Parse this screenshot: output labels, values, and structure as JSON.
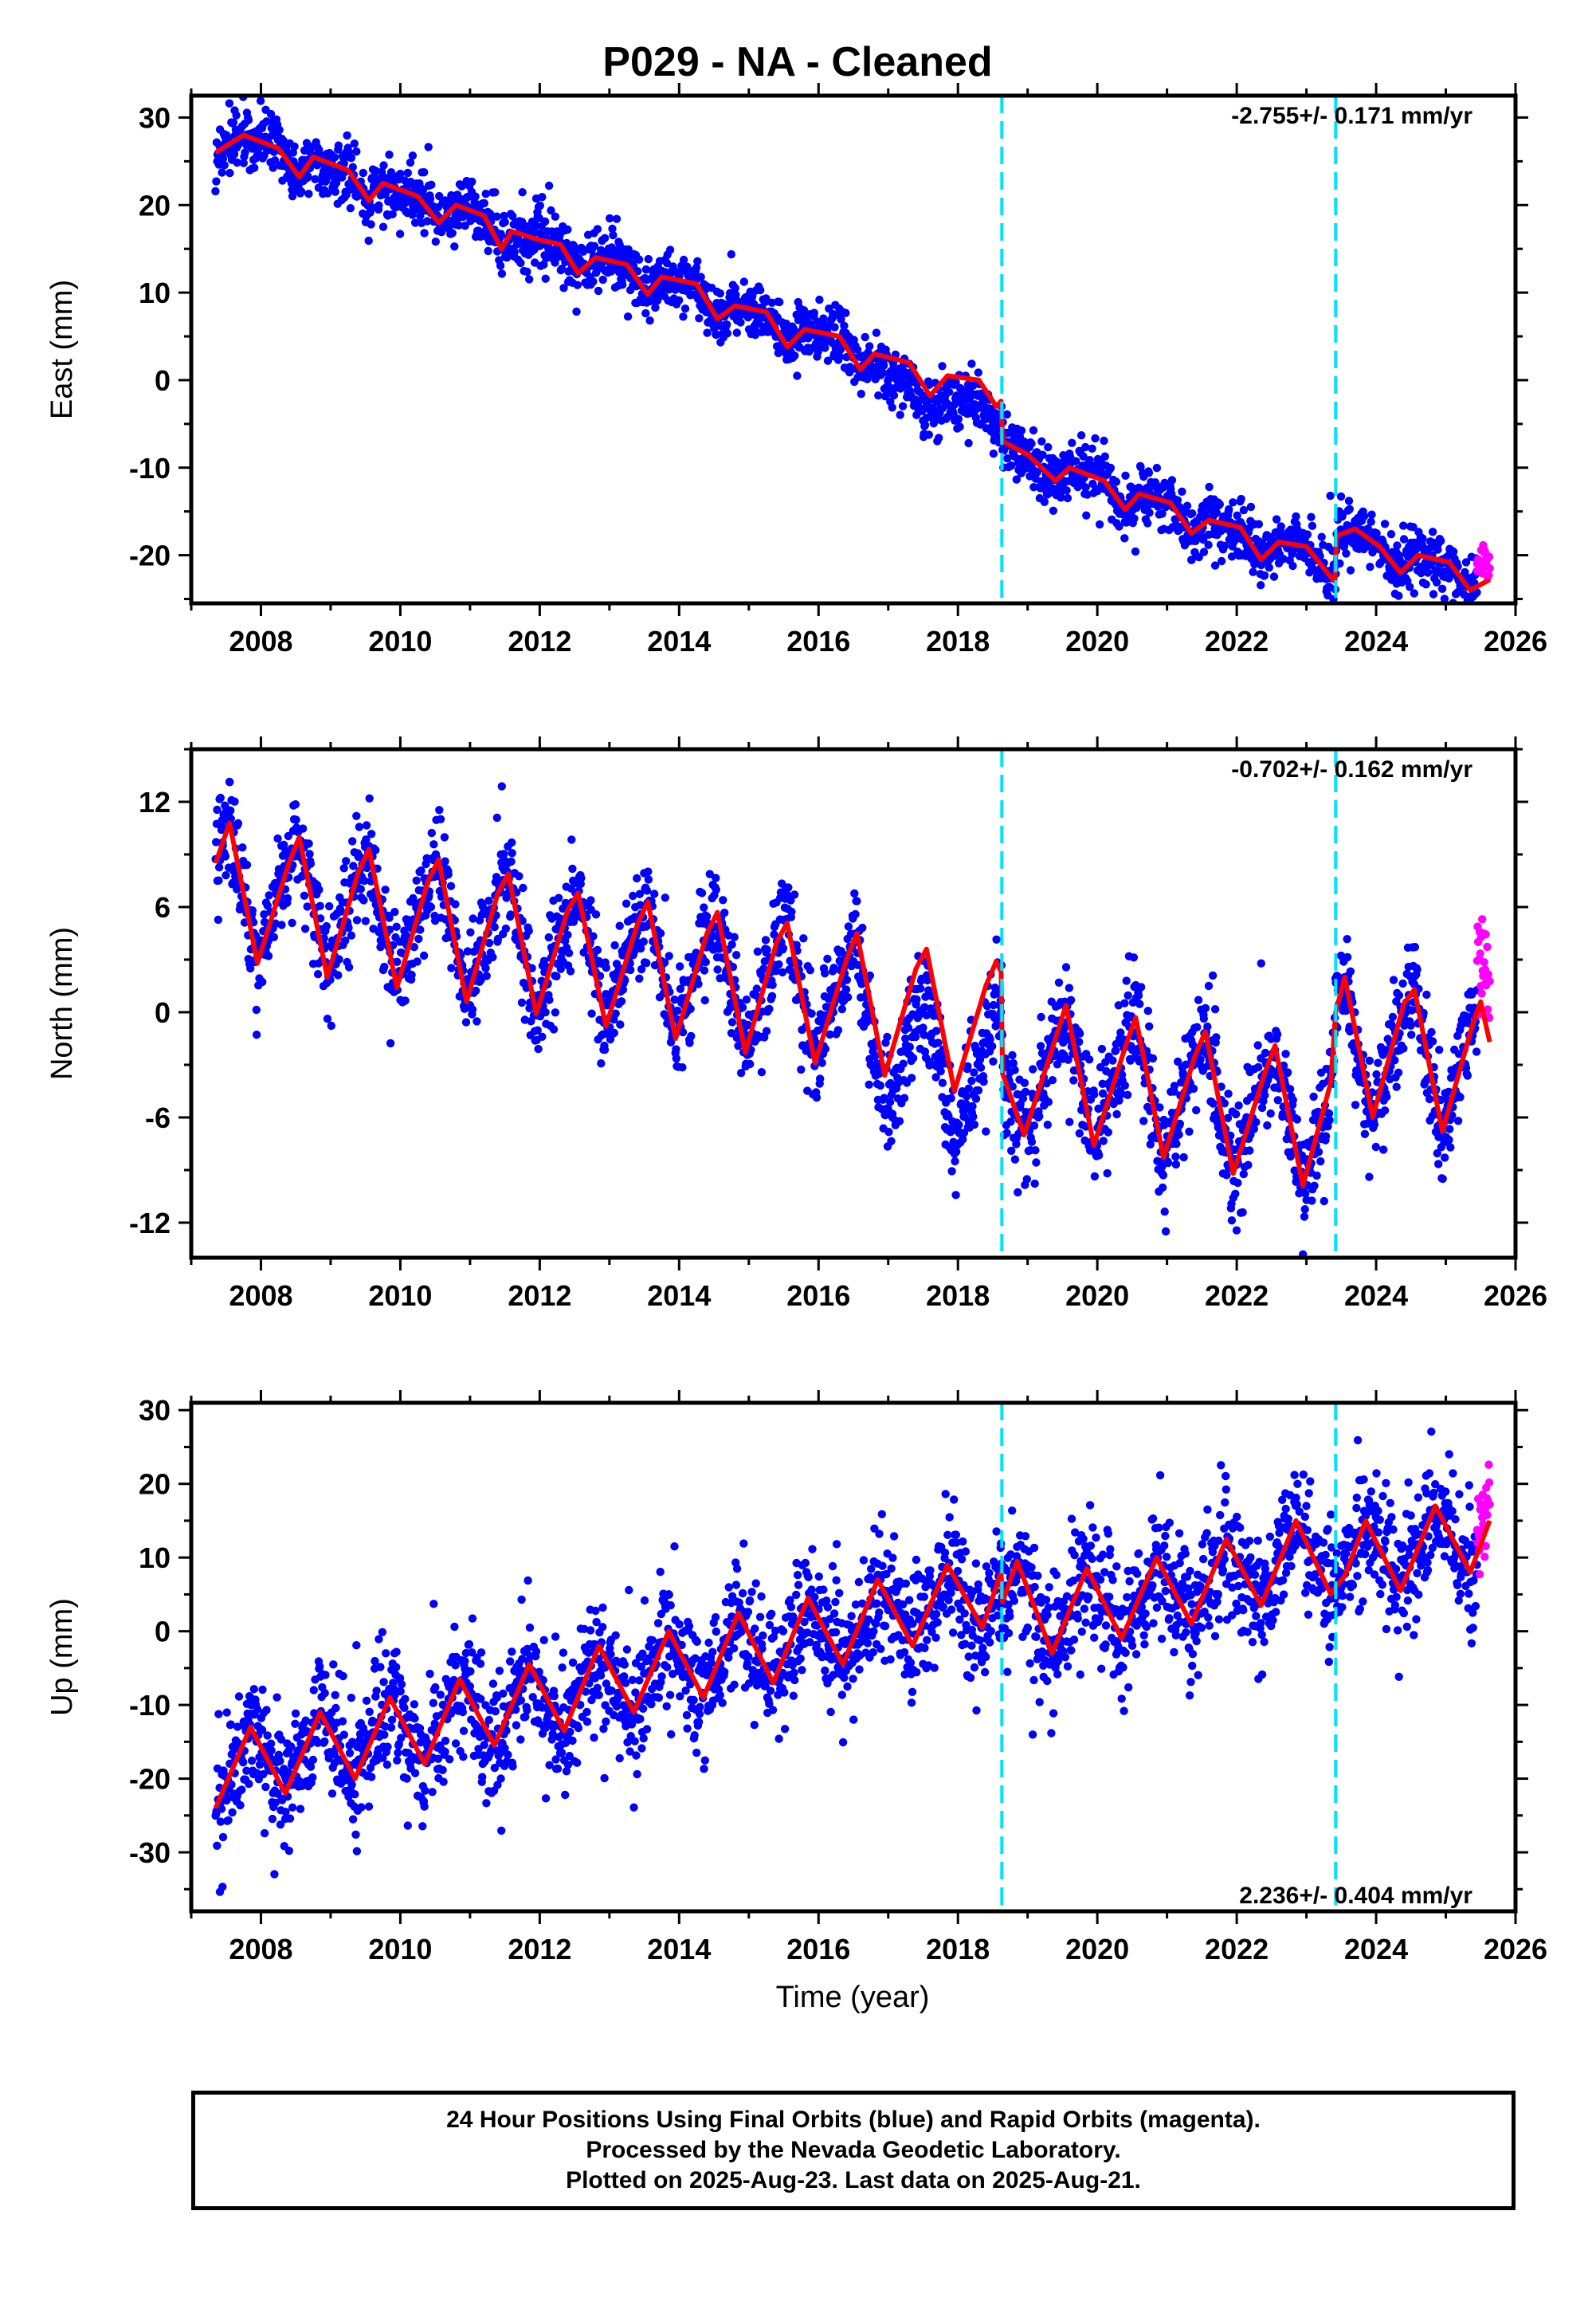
{
  "title": "P029  - NA - Cleaned",
  "xlabel": "Time (year)",
  "colors": {
    "final_orbits": "#0000ff",
    "rapid_orbits": "#ff00ff",
    "model": "#ff0000",
    "event_lines": "#00e0ff"
  },
  "footer": {
    "line1": "24 Hour Positions Using Final Orbits (blue) and Rapid Orbits (magenta).",
    "line2": "Processed by the Nevada Geodetic Laboratory.",
    "line3": "Plotted on 2025-Aug-23. Last data on 2025-Aug-21."
  },
  "chart_data": [
    {
      "type": "scatter",
      "panel": "East",
      "ylabel": "East (mm)",
      "rate_text": "-2.755+/- 0.171 mm/yr",
      "xlim": [
        2007.0,
        2026.0
      ],
      "ylim": [
        -25.5,
        32.5
      ],
      "x_ticks": [
        2008,
        2010,
        2012,
        2014,
        2016,
        2018,
        2020,
        2022,
        2024,
        2026
      ],
      "y_ticks": [
        -20,
        -10,
        0,
        10,
        20,
        30
      ],
      "event_lines_x": [
        2018.63,
        2023.42
      ],
      "data_range_x": [
        2007.35,
        2025.63
      ],
      "rapid_orbit_x_start": 2025.45,
      "model_line": {
        "x": [
          2007.35,
          2007.75,
          2008.25,
          2008.55,
          2008.75,
          2009.25,
          2009.55,
          2009.75,
          2010.25,
          2010.55,
          2010.8,
          2011.2,
          2011.45,
          2011.6,
          2012.0,
          2012.3,
          2012.55,
          2012.8,
          2013.25,
          2013.55,
          2013.75,
          2014.25,
          2014.55,
          2014.8,
          2015.25,
          2015.55,
          2015.8,
          2016.3,
          2016.6,
          2016.8,
          2017.3,
          2017.6,
          2017.85,
          2018.3,
          2018.55,
          2018.62,
          2018.64,
          2019.0,
          2019.4,
          2019.6,
          2020.1,
          2020.4,
          2020.6,
          2021.05,
          2021.35,
          2021.6,
          2022.05,
          2022.35,
          2022.6,
          2023.0,
          2023.35,
          2023.41,
          2023.43,
          2023.7,
          2024.05,
          2024.35,
          2024.6,
          2025.05,
          2025.35,
          2025.63
        ],
        "y": [
          26.0,
          28.0,
          26.5,
          23.2,
          25.5,
          24.0,
          20.5,
          22.5,
          21.0,
          18.0,
          20.0,
          18.8,
          15.0,
          17.0,
          16.0,
          15.5,
          12.2,
          14.0,
          13.2,
          9.8,
          11.8,
          11.0,
          7.0,
          8.5,
          7.8,
          3.8,
          5.8,
          5.0,
          1.2,
          3.0,
          2.0,
          -1.8,
          0.5,
          0.0,
          -3.0,
          -2.4,
          -7.0,
          -8.5,
          -11.5,
          -10.0,
          -11.5,
          -14.8,
          -13.0,
          -14.0,
          -17.5,
          -16.0,
          -16.8,
          -20.5,
          -18.5,
          -19.0,
          -22.5,
          -23.0,
          -17.8,
          -17.0,
          -19.0,
          -22.0,
          -20.0,
          -20.8,
          -24.0,
          -22.8
        ]
      }
    },
    {
      "type": "scatter",
      "panel": "North",
      "ylabel": "North (mm)",
      "rate_text": "-0.702+/- 0.162 mm/yr",
      "xlim": [
        2007.0,
        2026.0
      ],
      "ylim": [
        -14.0,
        15.0
      ],
      "x_ticks": [
        2008,
        2010,
        2012,
        2014,
        2016,
        2018,
        2020,
        2022,
        2024,
        2026
      ],
      "y_ticks": [
        -12,
        -6,
        0,
        6,
        12
      ],
      "event_lines_x": [
        2018.63,
        2023.42
      ],
      "data_range_x": [
        2007.35,
        2025.63
      ],
      "rapid_orbit_x_start": 2025.45,
      "model_line": {
        "x": [
          2007.35,
          2007.55,
          2007.95,
          2008.4,
          2008.55,
          2008.95,
          2009.4,
          2009.55,
          2009.95,
          2010.4,
          2010.55,
          2010.95,
          2011.4,
          2011.55,
          2011.95,
          2012.4,
          2012.55,
          2012.95,
          2013.4,
          2013.55,
          2013.95,
          2014.4,
          2014.55,
          2014.95,
          2015.4,
          2015.55,
          2015.95,
          2016.4,
          2016.55,
          2016.95,
          2017.4,
          2017.55,
          2017.95,
          2018.4,
          2018.55,
          2018.62,
          2018.64,
          2018.95,
          2019.4,
          2019.55,
          2019.95,
          2020.4,
          2020.55,
          2020.95,
          2021.4,
          2021.55,
          2021.95,
          2022.4,
          2022.55,
          2022.95,
          2023.35,
          2023.42,
          2023.55,
          2023.95,
          2024.4,
          2024.55,
          2024.95,
          2025.4,
          2025.5,
          2025.63
        ],
        "y": [
          8.5,
          10.8,
          2.8,
          8.5,
          10.0,
          2.0,
          8.0,
          9.3,
          1.4,
          7.5,
          8.7,
          0.6,
          6.8,
          7.9,
          -0.1,
          5.8,
          6.8,
          -0.8,
          5.0,
          6.3,
          -1.5,
          4.5,
          5.7,
          -2.3,
          4.0,
          5.1,
          -2.9,
          3.0,
          4.5,
          -3.6,
          2.5,
          3.6,
          -4.5,
          1.5,
          2.9,
          2.3,
          -3.5,
          -7.0,
          -1.5,
          0.4,
          -7.6,
          -2.0,
          -0.3,
          -8.3,
          -2.5,
          -1.1,
          -9.2,
          -3.5,
          -1.9,
          -9.9,
          -4.0,
          0.0,
          2.0,
          -6.0,
          0.5,
          1.3,
          -6.8,
          -0.5,
          0.6,
          -1.7
        ]
      }
    },
    {
      "type": "scatter",
      "panel": "Up",
      "ylabel": "Up (mm)",
      "rate_text": "2.236+/- 0.404 mm/yr",
      "xlim": [
        2007.0,
        2026.0
      ],
      "ylim": [
        -38.0,
        31.0
      ],
      "x_ticks": [
        2008,
        2010,
        2012,
        2014,
        2016,
        2018,
        2020,
        2022,
        2024,
        2026
      ],
      "y_ticks": [
        -30,
        -20,
        -10,
        0,
        10,
        20,
        30
      ],
      "event_lines_x": [
        2018.63,
        2023.42
      ],
      "data_range_x": [
        2007.35,
        2025.63
      ],
      "rapid_orbit_x_start": 2025.45,
      "model_line": {
        "x": [
          2007.35,
          2007.85,
          2008.35,
          2008.85,
          2009.35,
          2009.85,
          2010.35,
          2010.85,
          2011.35,
          2011.85,
          2012.35,
          2012.85,
          2013.35,
          2013.85,
          2014.35,
          2014.85,
          2015.35,
          2015.85,
          2016.35,
          2016.85,
          2017.35,
          2017.85,
          2018.35,
          2018.62,
          2018.64,
          2018.85,
          2019.35,
          2019.85,
          2020.35,
          2020.85,
          2021.35,
          2021.85,
          2022.35,
          2022.85,
          2023.35,
          2023.42,
          2023.55,
          2023.85,
          2024.35,
          2024.85,
          2025.35,
          2025.63
        ],
        "y": [
          -24.0,
          -13.0,
          -22.0,
          -11.0,
          -20.0,
          -9.0,
          -18.0,
          -6.5,
          -15.5,
          -4.5,
          -13.5,
          -2.0,
          -11.0,
          0.0,
          -9.0,
          2.5,
          -7.0,
          4.5,
          -4.5,
          7.0,
          -2.0,
          9.0,
          0.5,
          8.0,
          4.0,
          9.5,
          -3.0,
          8.5,
          -1.0,
          10.0,
          1.0,
          12.5,
          3.5,
          15.0,
          5.0,
          6.0,
          7.5,
          15.0,
          5.5,
          17.0,
          8.0,
          15.0
        ]
      }
    }
  ]
}
